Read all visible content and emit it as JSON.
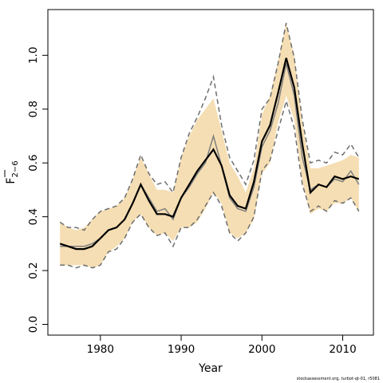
{
  "chart_data": {
    "type": "line",
    "xlabel": "Year",
    "ylabel_main": "F",
    "ylabel_sub": "2−6",
    "xlim": [
      1973.5,
      2013.8
    ],
    "ylim": [
      -0.04,
      1.17
    ],
    "xticks": [
      1980,
      1990,
      2000,
      2010
    ],
    "yticks": [
      0.0,
      0.2,
      0.4,
      0.6,
      0.8,
      1.0
    ],
    "xtick_labels": [
      "1980",
      "1990",
      "2000",
      "2010"
    ],
    "ytick_labels": [
      "0.0",
      "0.2",
      "0.4",
      "0.6",
      "0.8",
      "1.0"
    ],
    "colors": {
      "band": "#f5deb3",
      "main_line": "#000000",
      "second_line": "#7f7f7f",
      "bounds": "#6e6e6e"
    },
    "x": [
      1975,
      1976,
      1977,
      1978,
      1979,
      1980,
      1981,
      1982,
      1983,
      1984,
      1985,
      1986,
      1987,
      1988,
      1989,
      1990,
      1991,
      1992,
      1993,
      1994,
      1995,
      1996,
      1997,
      1998,
      1999,
      2000,
      2001,
      2002,
      2003,
      2004,
      2005,
      2006,
      2007,
      2008,
      2009,
      2010,
      2011,
      2012
    ],
    "series": [
      {
        "role": "band_upper",
        "values": [
          0.38,
          0.36,
          0.35,
          0.36,
          0.39,
          0.42,
          0.43,
          0.44,
          0.47,
          0.54,
          0.62,
          0.56,
          0.5,
          0.5,
          0.49,
          0.62,
          0.7,
          0.76,
          0.8,
          0.84,
          0.72,
          0.6,
          0.55,
          0.49,
          0.58,
          0.78,
          0.85,
          0.98,
          1.12,
          1.0,
          0.75,
          0.58,
          0.58,
          0.59,
          0.6,
          0.61,
          0.63,
          0.62
        ]
      },
      {
        "role": "band_lower",
        "values": [
          0.22,
          0.22,
          0.22,
          0.22,
          0.21,
          0.22,
          0.27,
          0.29,
          0.32,
          0.38,
          0.41,
          0.36,
          0.33,
          0.34,
          0.31,
          0.36,
          0.36,
          0.38,
          0.43,
          0.49,
          0.45,
          0.34,
          0.32,
          0.34,
          0.39,
          0.56,
          0.6,
          0.75,
          0.85,
          0.76,
          0.53,
          0.41,
          0.43,
          0.42,
          0.45,
          0.45,
          0.47,
          0.42
        ]
      },
      {
        "role": "upper_dashed",
        "values": [
          0.38,
          0.36,
          0.36,
          0.35,
          0.39,
          0.42,
          0.43,
          0.44,
          0.47,
          0.54,
          0.63,
          0.56,
          0.52,
          0.53,
          0.49,
          0.62,
          0.71,
          0.77,
          0.84,
          0.92,
          0.74,
          0.62,
          0.57,
          0.52,
          0.61,
          0.8,
          0.84,
          0.97,
          1.12,
          0.99,
          0.76,
          0.6,
          0.61,
          0.6,
          0.64,
          0.63,
          0.67,
          0.62
        ]
      },
      {
        "role": "lower_dashed",
        "values": [
          0.22,
          0.22,
          0.21,
          0.22,
          0.21,
          0.22,
          0.27,
          0.28,
          0.32,
          0.38,
          0.41,
          0.36,
          0.33,
          0.34,
          0.29,
          0.36,
          0.36,
          0.39,
          0.44,
          0.49,
          0.44,
          0.34,
          0.31,
          0.34,
          0.4,
          0.57,
          0.61,
          0.72,
          0.83,
          0.73,
          0.52,
          0.42,
          0.44,
          0.42,
          0.46,
          0.45,
          0.47,
          0.42
        ]
      },
      {
        "role": "second_estimate",
        "values": [
          0.29,
          0.29,
          0.29,
          0.29,
          0.3,
          0.32,
          0.35,
          0.36,
          0.39,
          0.45,
          0.52,
          0.47,
          0.42,
          0.43,
          0.39,
          0.47,
          0.51,
          0.56,
          0.6,
          0.7,
          0.59,
          0.47,
          0.43,
          0.42,
          0.51,
          0.66,
          0.72,
          0.82,
          0.97,
          0.85,
          0.62,
          0.5,
          0.52,
          0.51,
          0.54,
          0.53,
          0.57,
          0.52
        ]
      },
      {
        "role": "main_estimate",
        "values": [
          0.3,
          0.29,
          0.28,
          0.28,
          0.29,
          0.32,
          0.35,
          0.36,
          0.39,
          0.45,
          0.52,
          0.46,
          0.41,
          0.41,
          0.4,
          0.47,
          0.52,
          0.57,
          0.61,
          0.65,
          0.59,
          0.48,
          0.44,
          0.43,
          0.53,
          0.68,
          0.74,
          0.86,
          0.99,
          0.88,
          0.67,
          0.49,
          0.52,
          0.51,
          0.55,
          0.54,
          0.55,
          0.54
        ]
      }
    ]
  },
  "credit": "stockassessment.org, turbot-qt-01, r5081"
}
